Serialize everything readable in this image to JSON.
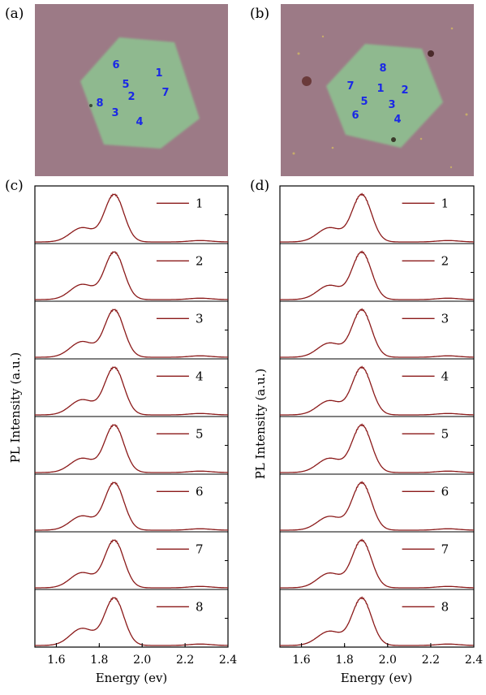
{
  "panels": {
    "a": {
      "letter": "(a)"
    },
    "b": {
      "letter": "(b)"
    },
    "c": {
      "letter": "(c)"
    },
    "d": {
      "letter": "(d)"
    }
  },
  "colors": {
    "substrate": "#9c7a86",
    "flake": "#8fb98f",
    "spot_labels": "#1a28e6",
    "spectrum": "#8b1a1a"
  },
  "micrographs": {
    "a": {
      "spots": [
        {
          "label": "1",
          "pos": [
            196,
            94
          ]
        },
        {
          "label": "2",
          "pos": [
            162,
            123
          ]
        },
        {
          "label": "3",
          "pos": [
            142,
            143
          ]
        },
        {
          "label": "4",
          "pos": [
            172,
            154
          ]
        },
        {
          "label": "5",
          "pos": [
            155,
            108
          ]
        },
        {
          "label": "6",
          "pos": [
            143,
            84
          ]
        },
        {
          "label": "7",
          "pos": [
            204,
            118
          ]
        },
        {
          "label": "8",
          "pos": [
            123,
            131
          ]
        }
      ]
    },
    "b": {
      "spots": [
        {
          "label": "1",
          "pos": [
            469,
            113
          ]
        },
        {
          "label": "2",
          "pos": [
            499,
            115
          ]
        },
        {
          "label": "3",
          "pos": [
            483,
            133
          ]
        },
        {
          "label": "4",
          "pos": [
            490,
            151
          ]
        },
        {
          "label": "5",
          "pos": [
            449,
            129
          ]
        },
        {
          "label": "6",
          "pos": [
            438,
            146
          ]
        },
        {
          "label": "7",
          "pos": [
            432,
            110
          ]
        },
        {
          "label": "8",
          "pos": [
            472,
            88
          ]
        }
      ]
    }
  },
  "chart_data": [
    {
      "panel": "c",
      "type": "line",
      "layout": "stacked",
      "xlabel": "Energy (ev)",
      "ylabel": "PL Intensity (a.u.)",
      "xlim": [
        1.5,
        2.4
      ],
      "xticks": [
        "1.6",
        "1.8",
        "2.0",
        "2.2",
        "2.4"
      ],
      "series": [
        {
          "name": "1",
          "peak_x": 1.87,
          "shoulder_x": 1.72,
          "shoulder_rel": 0.3,
          "minor_peak_x": 2.27,
          "minor_peak_rel": 0.03
        },
        {
          "name": "2",
          "peak_x": 1.87,
          "shoulder_x": 1.72,
          "shoulder_rel": 0.32,
          "minor_peak_x": 2.27,
          "minor_peak_rel": 0.03
        },
        {
          "name": "3",
          "peak_x": 1.87,
          "shoulder_x": 1.72,
          "shoulder_rel": 0.33,
          "minor_peak_x": 2.27,
          "minor_peak_rel": 0.03
        },
        {
          "name": "4",
          "peak_x": 1.87,
          "shoulder_x": 1.72,
          "shoulder_rel": 0.32,
          "minor_peak_x": 2.27,
          "minor_peak_rel": 0.03
        },
        {
          "name": "5",
          "peak_x": 1.87,
          "shoulder_x": 1.72,
          "shoulder_rel": 0.3,
          "minor_peak_x": 2.27,
          "minor_peak_rel": 0.03
        },
        {
          "name": "6",
          "peak_x": 1.87,
          "shoulder_x": 1.72,
          "shoulder_rel": 0.3,
          "minor_peak_x": 2.27,
          "minor_peak_rel": 0.03
        },
        {
          "name": "7",
          "peak_x": 1.87,
          "shoulder_x": 1.72,
          "shoulder_rel": 0.32,
          "minor_peak_x": 2.27,
          "minor_peak_rel": 0.03
        },
        {
          "name": "8",
          "peak_x": 1.87,
          "shoulder_x": 1.72,
          "shoulder_rel": 0.36,
          "minor_peak_x": 2.27,
          "minor_peak_rel": 0.03
        }
      ]
    },
    {
      "panel": "d",
      "type": "line",
      "layout": "stacked",
      "xlabel": "Energy (ev)",
      "ylabel": "PL Intensity (a.u.)",
      "xlim": [
        1.5,
        2.4
      ],
      "xticks": [
        "1.6",
        "1.8",
        "2.0",
        "2.2",
        "2.4"
      ],
      "series": [
        {
          "name": "1",
          "peak_x": 1.88,
          "shoulder_x": 1.73,
          "shoulder_rel": 0.3,
          "minor_peak_x": 2.28,
          "minor_peak_rel": 0.03
        },
        {
          "name": "2",
          "peak_x": 1.88,
          "shoulder_x": 1.73,
          "shoulder_rel": 0.3,
          "minor_peak_x": 2.28,
          "minor_peak_rel": 0.03
        },
        {
          "name": "3",
          "peak_x": 1.88,
          "shoulder_x": 1.73,
          "shoulder_rel": 0.3,
          "minor_peak_x": 2.28,
          "minor_peak_rel": 0.03
        },
        {
          "name": "4",
          "peak_x": 1.88,
          "shoulder_x": 1.73,
          "shoulder_rel": 0.3,
          "minor_peak_x": 2.28,
          "minor_peak_rel": 0.03
        },
        {
          "name": "5",
          "peak_x": 1.88,
          "shoulder_x": 1.73,
          "shoulder_rel": 0.3,
          "minor_peak_x": 2.28,
          "minor_peak_rel": 0.03
        },
        {
          "name": "6",
          "peak_x": 1.88,
          "shoulder_x": 1.73,
          "shoulder_rel": 0.29,
          "minor_peak_x": 2.28,
          "minor_peak_rel": 0.03
        },
        {
          "name": "7",
          "peak_x": 1.88,
          "shoulder_x": 1.73,
          "shoulder_rel": 0.31,
          "minor_peak_x": 2.28,
          "minor_peak_rel": 0.03
        },
        {
          "name": "8",
          "peak_x": 1.88,
          "shoulder_x": 1.73,
          "shoulder_rel": 0.3,
          "minor_peak_x": 2.28,
          "minor_peak_rel": 0.03
        }
      ]
    }
  ]
}
